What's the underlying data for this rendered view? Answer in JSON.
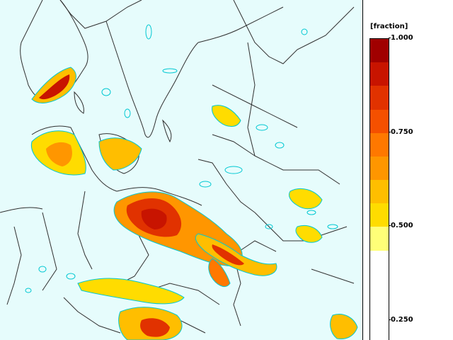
{
  "map": {
    "background_color": "#e6fcfc",
    "coastline_color": "#303030",
    "border_color": "#303030",
    "contour_color": "#00c8d2",
    "variable": "fraction"
  },
  "legend": {
    "title": "[fraction]",
    "ticks": [
      "1.000",
      "0.750",
      "0.500",
      "0.250"
    ],
    "tick_values": [
      1.0,
      0.75,
      0.5,
      0.25
    ],
    "colors_top_to_bottom": [
      "#a00000",
      "#c81400",
      "#e13200",
      "#f55000",
      "#ff7800",
      "#ff9600",
      "#ffbe00",
      "#ffdc00",
      "#ffff78"
    ]
  }
}
